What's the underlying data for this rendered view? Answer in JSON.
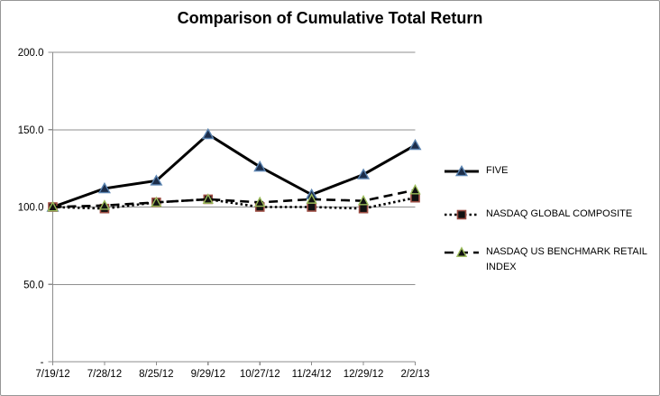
{
  "chart_data": {
    "type": "line",
    "title": "Comparison of Cumulative Total Return",
    "categories": [
      "7/19/12",
      "7/28/12",
      "8/25/12",
      "9/29/12",
      "10/27/12",
      "11/24/12",
      "12/29/12",
      "2/2/13"
    ],
    "series": [
      {
        "name": "FIVE",
        "values": [
          100,
          112,
          117,
          147,
          126,
          108,
          121,
          140
        ],
        "line_style": "solid",
        "marker": "triangle",
        "line_color": "#000000",
        "marker_fill": "#1c2d4a",
        "marker_stroke": "#5b84b1"
      },
      {
        "name": "NASDAQ GLOBAL COMPOSITE",
        "values": [
          100,
          99,
          103,
          105,
          100,
          100,
          99,
          106
        ],
        "line_style": "dotted",
        "marker": "square",
        "line_color": "#000000",
        "marker_fill": "#111111",
        "marker_stroke": "#9c4d43"
      },
      {
        "name": "NASDAQ US BENCHMARK RETAIL INDEX",
        "values": [
          100,
          101,
          103,
          105,
          103,
          105,
          104,
          111
        ],
        "line_style": "dashed",
        "marker": "triangle",
        "line_color": "#000000",
        "marker_fill": "#111111",
        "marker_stroke": "#9abb59"
      }
    ],
    "ylim": [
      0,
      200
    ],
    "ytick_values": [
      0,
      50,
      100,
      150,
      200
    ],
    "ytick_labels": [
      "-",
      "50.0",
      "100.0",
      "150.0",
      "200.0"
    ],
    "grid": true,
    "legend_position": "right",
    "axis_color": "#8c8c8c",
    "grid_color": "#8f8f8f"
  }
}
